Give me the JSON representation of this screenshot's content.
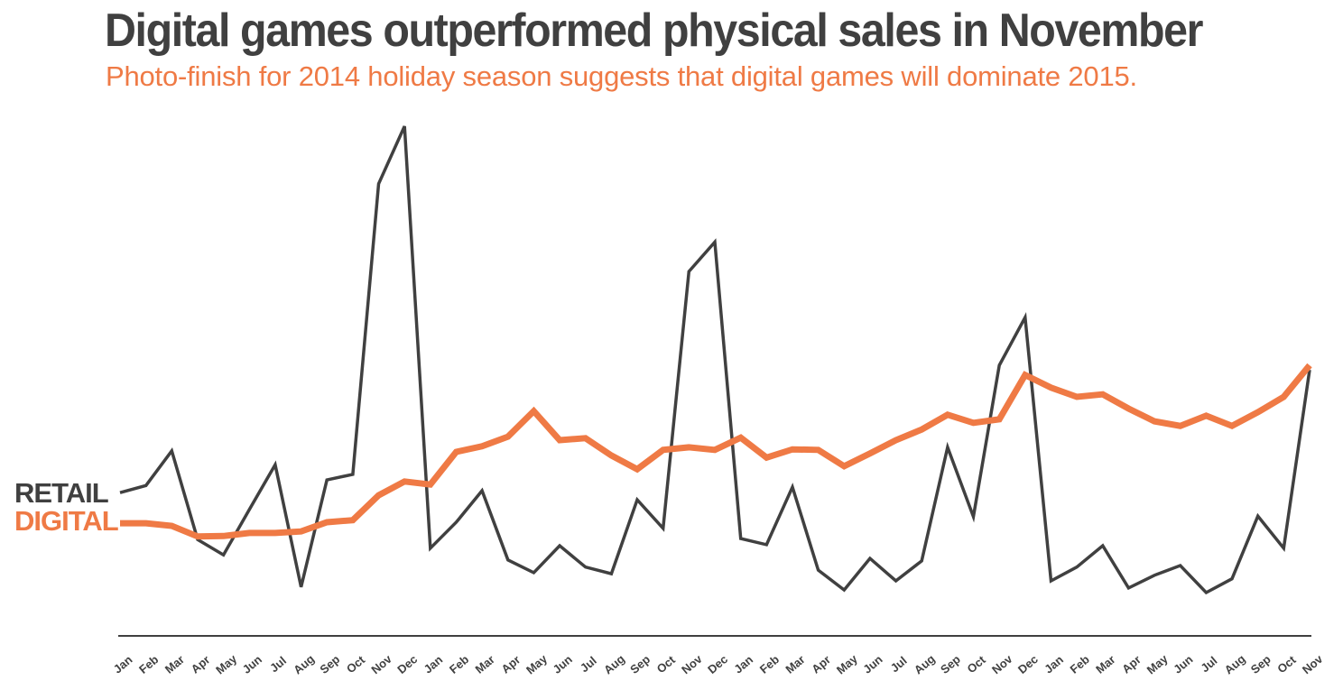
{
  "chart_data": {
    "type": "line",
    "title": "Digital games outperformed physical sales in November",
    "subtitle": "Photo-finish for 2014 holiday season suggests that digital games will dominate 2015.",
    "xlabel": "",
    "ylabel": "",
    "grid": false,
    "legend": "left-inline",
    "ylim": [
      0,
      100
    ],
    "categories": [
      "Jan",
      "Feb",
      "Mar",
      "Apr",
      "May",
      "Jun",
      "Jul",
      "Aug",
      "Sep",
      "Oct",
      "Nov",
      "Dec",
      "Jan",
      "Feb",
      "Mar",
      "Apr",
      "May",
      "Jun",
      "Jul",
      "Aug",
      "Sep",
      "Oct",
      "Nov",
      "Dec",
      "Jan",
      "Feb",
      "Mar",
      "Apr",
      "May",
      "Jun",
      "Jul",
      "Aug",
      "Sep",
      "Oct",
      "Nov",
      "Dec",
      "Jan",
      "Feb",
      "Mar",
      "Apr",
      "May",
      "Jun",
      "Jul",
      "Aug",
      "Sep",
      "Oct",
      "Nov"
    ],
    "series": [
      {
        "name": "RETAIL",
        "color": "#404040",
        "values": [
          28.1,
          29.5,
          36.3,
          18.9,
          15.9,
          24.8,
          33.6,
          9.6,
          30.6,
          31.7,
          88.7,
          100.0,
          17.2,
          22.3,
          28.5,
          14.9,
          12.4,
          17.7,
          13.5,
          12.2,
          26.7,
          21.1,
          71.5,
          77.3,
          19.1,
          17.9,
          29.2,
          12.9,
          9.0,
          15.2,
          10.8,
          14.7,
          37.0,
          23.4,
          53.1,
          62.5,
          10.8,
          13.5,
          17.7,
          9.4,
          11.9,
          13.8,
          8.5,
          11.2,
          23.5,
          17.2,
          52.2
        ]
      },
      {
        "name": "DIGITAL",
        "color": "#ef7a45",
        "values": [
          22.1,
          22.1,
          21.6,
          19.5,
          19.6,
          20.2,
          20.2,
          20.5,
          22.3,
          22.7,
          27.6,
          30.3,
          29.7,
          36.1,
          37.2,
          39.1,
          44.1,
          38.4,
          38.8,
          35.4,
          32.7,
          36.5,
          37.0,
          36.5,
          38.9,
          35.0,
          36.6,
          36.5,
          33.3,
          35.8,
          38.4,
          40.5,
          43.4,
          41.8,
          42.5,
          51.2,
          48.7,
          46.9,
          47.4,
          44.6,
          42.1,
          41.2,
          43.2,
          41.2,
          43.9,
          46.9,
          53.1
        ]
      }
    ]
  }
}
